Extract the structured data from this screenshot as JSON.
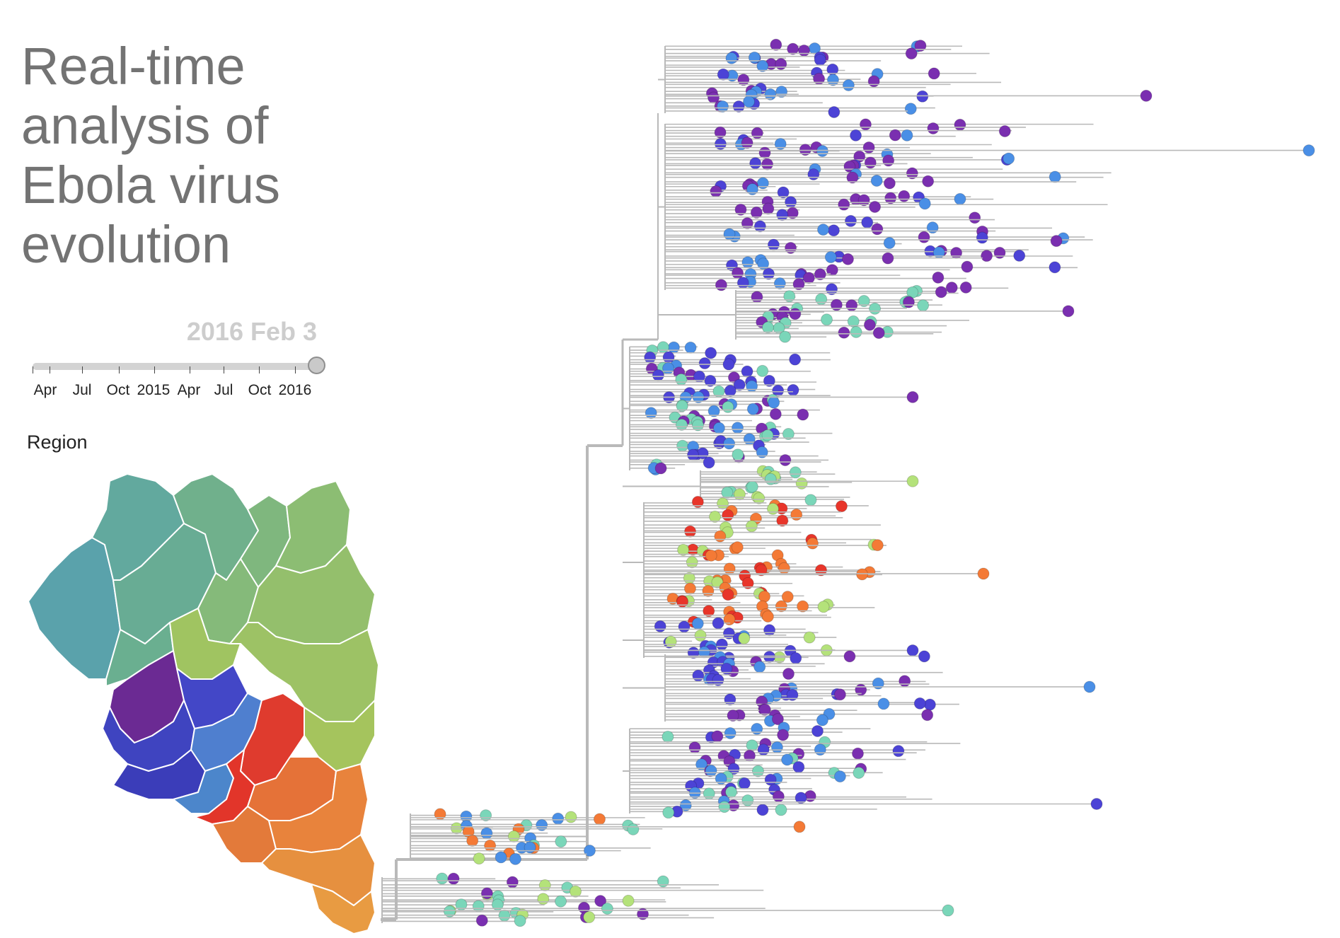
{
  "title": {
    "lines": [
      "Real-time",
      "analysis of",
      "Ebola virus",
      "evolution"
    ]
  },
  "slider": {
    "current_date": "2016 Feb 3",
    "progress": 1.0,
    "tick_labels": [
      "Apr",
      "Jul",
      "Oct",
      "2015",
      "Apr",
      "Jul",
      "Oct",
      "2016"
    ]
  },
  "legend": {
    "title": "Region"
  },
  "colors": {
    "branch": "#b9b9b9",
    "text_title": "#737373",
    "date_label": "#cdcdcd",
    "region_teal": "#58a3aa",
    "region_green_teal": "#6fb28f",
    "region_green": "#8fbf74",
    "region_yellow_green": "#a8c35d",
    "region_purple": "#6e2a95",
    "region_indigo": "#4346c9",
    "region_blue": "#4f82cd",
    "region_red": "#df3a2d",
    "region_orange": "#e5773a",
    "region_light_orange": "#e69a40",
    "tip_purple": "#7a2fb0",
    "tip_indigo": "#4c43d6",
    "tip_blue": "#4a8fe6",
    "tip_teal": "#7ad6b9",
    "tip_lime": "#b4e27a",
    "tip_orange": "#f47a36",
    "tip_red": "#e8352a"
  }
}
